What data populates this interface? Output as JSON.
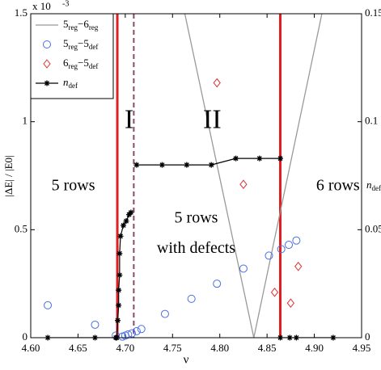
{
  "chart_data": {
    "type": "line",
    "xlabel": "ν",
    "ylabel": "|ΔE| / |E0|",
    "y2label": "ndef",
    "axis_multiplier": {
      "base": "x 10",
      "exponent": "-3"
    },
    "xlim": [
      4.6,
      4.95
    ],
    "xticks": [
      {
        "value": 4.6,
        "label": "4.60"
      },
      {
        "value": 4.65,
        "label": "4.65"
      },
      {
        "value": 4.7,
        "label": "4.70"
      },
      {
        "value": 4.75,
        "label": "4.75"
      },
      {
        "value": 4.8,
        "label": "4.80"
      },
      {
        "value": 4.85,
        "label": "4.85"
      },
      {
        "value": 4.9,
        "label": "4.90"
      },
      {
        "value": 4.95,
        "label": "4.95"
      }
    ],
    "ylim": [
      0,
      1.5
    ],
    "yticks": [
      0,
      0.5,
      1,
      1.5
    ],
    "y2lim": [
      0,
      0.15
    ],
    "y2ticks": [
      0,
      0.05,
      0.1,
      0.15
    ],
    "legend": "upper left",
    "series": [
      {
        "name": "5reg−6reg",
        "color": "#999999",
        "style": "line",
        "x": [
          4.763,
          4.836,
          4.908
        ],
        "values": [
          1.5,
          0,
          1.5
        ]
      },
      {
        "name": "5reg−5def",
        "color": "#4a6fe3",
        "style": "circle",
        "x": [
          4.618,
          4.668,
          4.69,
          4.697,
          4.7,
          4.703,
          4.707,
          4.712,
          4.717,
          4.742,
          4.77,
          4.797,
          4.825,
          4.852,
          4.865,
          4.873,
          4.881
        ],
        "values": [
          0.15,
          0.06,
          0.01,
          0.005,
          0.01,
          0.015,
          0.02,
          0.03,
          0.04,
          0.11,
          0.18,
          0.25,
          0.32,
          0.38,
          0.41,
          0.43,
          0.45
        ]
      },
      {
        "name": "6reg−5def",
        "color": "#e03030",
        "style": "diamond",
        "x": [
          4.797,
          4.825,
          4.858,
          4.875,
          4.883
        ],
        "values": [
          1.18,
          0.71,
          0.21,
          0.16,
          0.33
        ]
      },
      {
        "name": "ndef",
        "color": "#000000",
        "style": "star",
        "axis": "y2",
        "x": [
          4.618,
          4.668,
          4.69,
          4.691,
          4.692,
          4.693,
          4.693,
          4.694,
          4.694,
          4.695,
          4.698,
          4.701,
          4.704,
          4.706,
          4.709,
          4.712,
          4.739,
          4.765,
          4.791,
          4.817,
          4.842,
          4.864,
          4.864,
          4.864,
          4.874,
          4.881,
          4.92
        ],
        "values": [
          0,
          0,
          0,
          0,
          0.008,
          0.015,
          0.022,
          0.029,
          0.039,
          0.047,
          0.052,
          0.054,
          0.057,
          0.058,
          null,
          0.08,
          0.08,
          0.08,
          0.08,
          0.083,
          0.083,
          0.083,
          null,
          0,
          0,
          0,
          0
        ]
      }
    ],
    "vlines": [
      {
        "x": 4.6916,
        "color": "#e02020",
        "style": "solid"
      },
      {
        "x": 4.709,
        "color": "#8a4a6a",
        "style": "dashed"
      },
      {
        "x": 4.864,
        "color": "#e02020",
        "style": "solid"
      }
    ],
    "annotations": [
      {
        "text": "I",
        "x": 4.704,
        "y": 1.0,
        "size": "big"
      },
      {
        "text": "II",
        "x": 4.792,
        "y": 1.0,
        "size": "big"
      },
      {
        "text": "5 rows",
        "x": 4.645,
        "y": 0.7
      },
      {
        "text": "5 rows",
        "x": 4.775,
        "y": 0.55
      },
      {
        "text": "with defects",
        "x": 4.775,
        "y": 0.41
      },
      {
        "text": "6 rows",
        "x": 4.925,
        "y": 0.7
      }
    ]
  }
}
